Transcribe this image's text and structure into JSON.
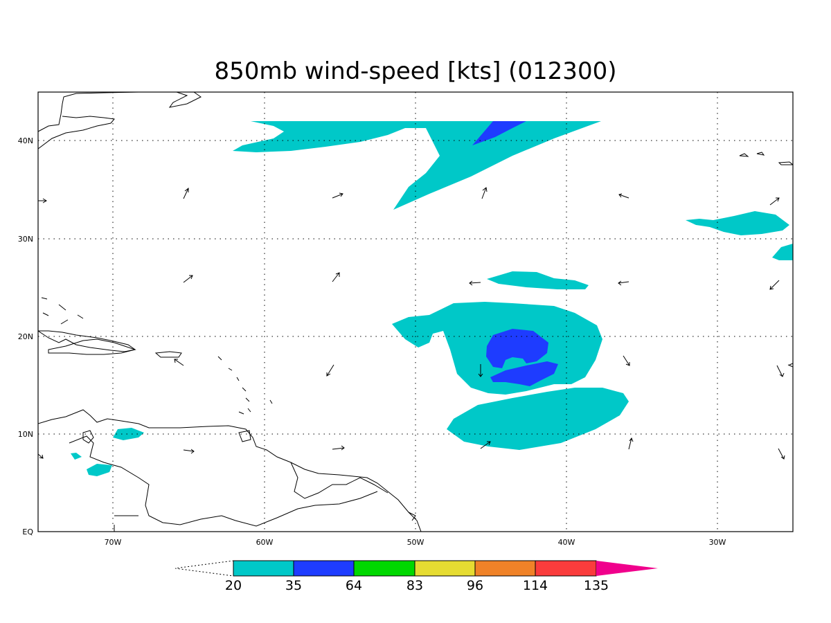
{
  "title": "850mb wind-speed [kts] (012300)",
  "map": {
    "lon_range": [
      -75,
      -25
    ],
    "lat_range": [
      0,
      45
    ],
    "x_ticks": [
      {
        "lon": -70,
        "label": "70W"
      },
      {
        "lon": -60,
        "label": "60W"
      },
      {
        "lon": -50,
        "label": "50W"
      },
      {
        "lon": -40,
        "label": "40W"
      },
      {
        "lon": -30,
        "label": "30W"
      }
    ],
    "y_ticks": [
      {
        "lat": 0,
        "label": "EQ"
      },
      {
        "lat": 10,
        "label": "10N"
      },
      {
        "lat": 20,
        "label": "20N"
      },
      {
        "lat": 30,
        "label": "30N"
      },
      {
        "lat": 40,
        "label": "40N"
      }
    ],
    "grid_lines": "dotted",
    "shading": [
      {
        "level": "20-35",
        "color": "#00c8c8",
        "regions": [
          "north-tongue-42N-50W",
          "east-band-31N-27W",
          "east-edge-28N-25W",
          "band-25N-43W",
          "hurricane-outer-ring-18N-44W",
          "south-lobe-11N-44W",
          "venezuela-coast-patches"
        ]
      },
      {
        "level": "35-64",
        "color": "#1e3cff",
        "regions": [
          "north-core-41N-45W",
          "hurricane-core-18N-43W"
        ]
      }
    ],
    "wind_vectors": "sparse arrows, grid of 5 deg"
  },
  "colorbar": {
    "levels": [
      "20",
      "35",
      "64",
      "83",
      "96",
      "114",
      "135"
    ],
    "colors": [
      "#00c8c8",
      "#1e3cff",
      "#00d800",
      "#e6dc32",
      "#f08228",
      "#fa3c3c",
      "#f0008c"
    ],
    "extend": "both"
  }
}
